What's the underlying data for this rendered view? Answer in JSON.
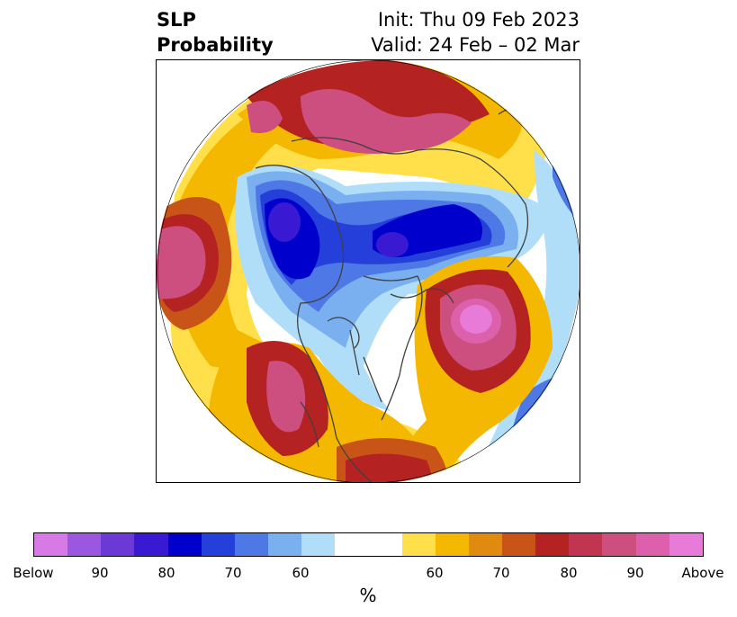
{
  "title": {
    "left_line1": "SLP",
    "left_line2": "Probability",
    "right_line1": "Init: Thu 09 Feb 2023",
    "right_line2": "Valid: 24 Feb – 02 Mar"
  },
  "colorbar": {
    "colors": [
      "#d77ae6",
      "#9b57e0",
      "#6b3ad6",
      "#3a19d3",
      "#0000cc",
      "#2540da",
      "#4d78e6",
      "#7ab0ef",
      "#b0def9",
      "#ffffff",
      "#ffffff",
      "#ffe04a",
      "#f5b800",
      "#e08a10",
      "#c85418",
      "#b52222",
      "#c23550",
      "#cc4f80",
      "#dc60ac",
      "#e87ad8"
    ],
    "tick_labels": [
      "Below",
      "90",
      "80",
      "70",
      "60",
      "60",
      "70",
      "80",
      "90",
      "Above"
    ],
    "unit_label": "%"
  },
  "palette": {
    "above_100": "#e87ad8",
    "above_90": "#cc4f80",
    "above_80": "#b52222",
    "above_70": "#c85418",
    "above_60": "#f5b800",
    "above_50": "#ffe04a",
    "below_60": "#b0def9",
    "below_70": "#7ab0ef",
    "below_80": "#4d78e6",
    "below_90": "#0000cc",
    "below_100": "#3a19d3",
    "coast": "#404040"
  }
}
